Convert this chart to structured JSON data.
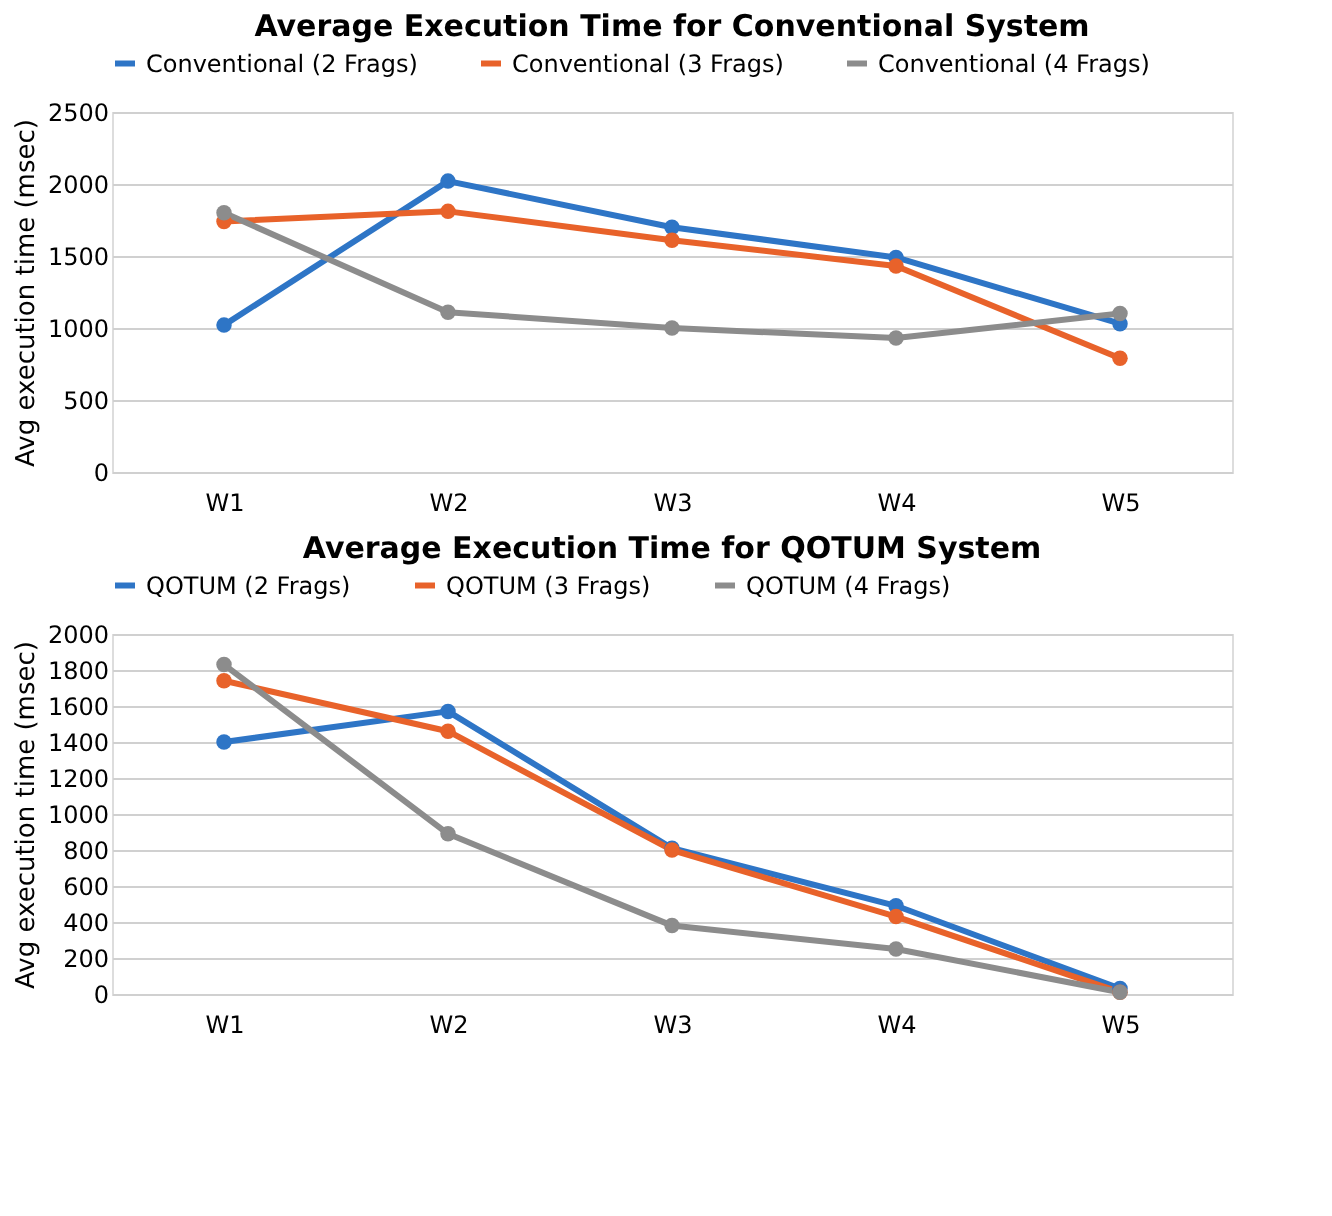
{
  "chart_data": [
    {
      "type": "line",
      "title": "Average Execution Time for Conventional System",
      "ylabel": "Avg execution time (msec)",
      "categories": [
        "W1",
        "W2",
        "W3",
        "W4",
        "W5"
      ],
      "ylim": [
        0,
        2500
      ],
      "yticks": [
        0,
        500,
        1000,
        1500,
        2000,
        2500
      ],
      "grid": "y",
      "legend": "top",
      "marker": "circle",
      "line_style": "solid",
      "series": [
        {
          "name": "Conventional (2 Frags)",
          "color": "#2e75c6",
          "values": [
            1020,
            2020,
            1700,
            1490,
            1030
          ]
        },
        {
          "name": "Conventional (3 Frags)",
          "color": "#e8622a",
          "values": [
            1740,
            1810,
            1610,
            1430,
            790
          ]
        },
        {
          "name": "Conventional (4 Frags)",
          "color": "#8c8c8c",
          "values": [
            1800,
            1110,
            1000,
            930,
            1100
          ]
        }
      ]
    },
    {
      "type": "line",
      "title": "Average Execution Time for QOTUM System",
      "ylabel": "Avg execution time (msec)",
      "categories": [
        "W1",
        "W2",
        "W3",
        "W4",
        "W5"
      ],
      "ylim": [
        0,
        2000
      ],
      "yticks": [
        0,
        200,
        400,
        600,
        800,
        1000,
        1200,
        1400,
        1600,
        1800,
        2000
      ],
      "grid": "y",
      "legend": "top",
      "marker": "circle",
      "line_style": "solid",
      "series": [
        {
          "name": "QOTUM (2 Frags)",
          "color": "#2e75c6",
          "values": [
            1400,
            1570,
            810,
            490,
            30
          ]
        },
        {
          "name": "QOTUM (3 Frags)",
          "color": "#e8622a",
          "values": [
            1740,
            1460,
            800,
            430,
            10
          ]
        },
        {
          "name": "QOTUM (4 Frags)",
          "color": "#8c8c8c",
          "values": [
            1830,
            890,
            380,
            250,
            10
          ]
        }
      ]
    }
  ]
}
